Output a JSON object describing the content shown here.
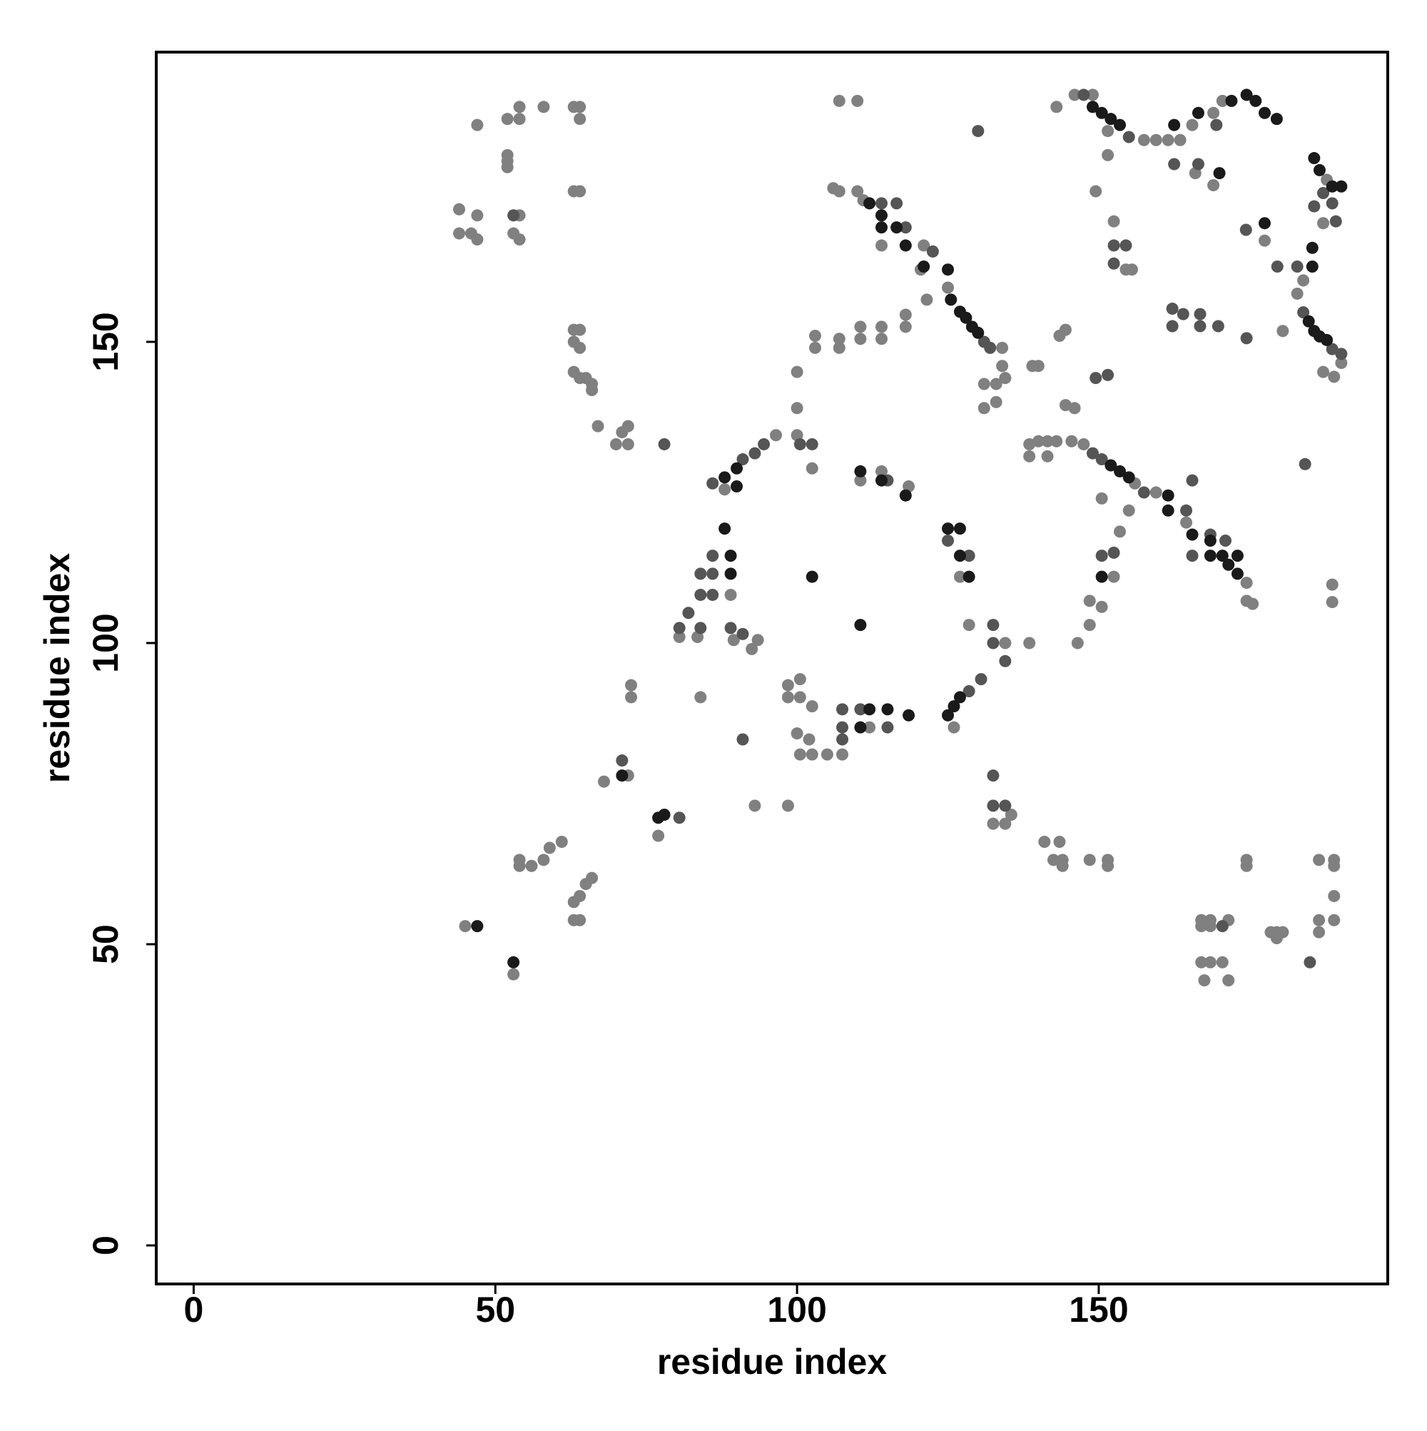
{
  "chart_data": {
    "type": "scatter",
    "x_label": "residue index",
    "y_label": "residue index",
    "xlim": [
      -6.2,
      197.9
    ],
    "ylim": [
      -6.4,
      198.1
    ],
    "xticks": [
      0,
      50,
      100,
      150
    ],
    "yticks": [
      0,
      50,
      100,
      150
    ],
    "grid": false,
    "series": [
      {
        "color": "#808080",
        "x": [
          44,
          44,
          46,
          47,
          47,
          47,
          52,
          54,
          54,
          58,
          63,
          64,
          64,
          52,
          52,
          52,
          54,
          53,
          54,
          63,
          64,
          63,
          64,
          63,
          64,
          63,
          64,
          65,
          66,
          66,
          67,
          71,
          72,
          70,
          72,
          107,
          110,
          106,
          107,
          110,
          111,
          114,
          120.5,
          121,
          125,
          134,
          131,
          133,
          134,
          134.5,
          131,
          133,
          100,
          103,
          103,
          107,
          107,
          110.5,
          110.5,
          114,
          114,
          118,
          118,
          121.5,
          100,
          100,
          96.5,
          88,
          102.5,
          110.5,
          114,
          118.5,
          89,
          80.5,
          83.5,
          89.5,
          92.5,
          93.5,
          98.5,
          100.5,
          98.5,
          100.5,
          102.5,
          100,
          102,
          100.5,
          102.5,
          105,
          107.5,
          112,
          127,
          128.5,
          134.5,
          126,
          138.5,
          72.5,
          72.5,
          84,
          72,
          68,
          77,
          93,
          98.5,
          61,
          59,
          54,
          56,
          58,
          54,
          66,
          65,
          63,
          64,
          63,
          64,
          45,
          53,
          135.5,
          132.5,
          134.5,
          141,
          143.5,
          142.5,
          144,
          148.5,
          151.5,
          144,
          151.5,
          174.5,
          174.5,
          186.5,
          189,
          189,
          189,
          186.5,
          189,
          186.5,
          167,
          168.5,
          171.5,
          167,
          168.5,
          167,
          168.5,
          170.5,
          167.5,
          171.5,
          178.5,
          179.5,
          180.5,
          179.5,
          138.5,
          140,
          141.5,
          143,
          145.5,
          147.5,
          156,
          159.5,
          164.5,
          174.5,
          175.5,
          174.5,
          138.5,
          141.5,
          150.5,
          155,
          153.5,
          152.5,
          148.5,
          148.5,
          150.5,
          146.5,
          139,
          140,
          144.5,
          143.5,
          144.5,
          146,
          149.5,
          152.5,
          154.5,
          155.5,
          143,
          146,
          149,
          151.5,
          157.5,
          159.5,
          161.5,
          163.5,
          151.5,
          165.5,
          170.5,
          169,
          166,
          169,
          187.8,
          187.2,
          183.9,
          182.9,
          190.2,
          187.2,
          189,
          177.5,
          180.5,
          188.7,
          188.7
        ],
        "y": [
          172,
          168,
          168,
          167,
          171,
          186,
          187,
          189,
          187,
          189,
          189,
          189,
          187,
          180,
          181,
          179,
          171,
          168,
          167,
          175,
          175,
          152,
          152,
          150,
          149,
          145,
          144,
          144,
          143,
          142,
          136,
          135,
          136,
          133,
          133,
          190,
          190,
          175.5,
          175,
          175,
          173.5,
          166,
          162,
          166,
          159,
          149,
          143,
          143,
          146,
          144,
          139,
          140,
          145,
          151,
          149,
          149,
          150.5,
          150.5,
          152.5,
          152.5,
          150.5,
          154.5,
          152.5,
          157,
          139,
          134.5,
          134.5,
          125.5,
          129,
          127,
          128.5,
          126,
          108,
          101,
          101,
          100.5,
          99,
          100.5,
          93,
          94,
          91,
          91,
          89.5,
          85,
          84,
          81.5,
          81.5,
          81.5,
          81.5,
          86,
          111,
          103,
          100,
          86,
          100,
          93,
          91,
          91,
          78,
          77,
          68,
          73,
          73,
          67,
          66,
          64,
          63,
          64,
          63,
          61,
          60,
          57,
          58,
          54,
          54,
          53,
          45,
          71.5,
          70,
          70,
          67,
          67,
          64,
          64,
          64,
          64,
          63,
          63,
          64,
          63,
          64,
          64,
          63,
          58,
          54,
          54,
          52,
          54,
          54,
          54,
          53,
          53,
          47,
          47,
          47,
          44,
          44,
          52,
          52,
          52,
          51,
          133,
          133.5,
          133.5,
          133.5,
          133.5,
          133,
          126.5,
          125,
          120,
          110,
          106.5,
          107,
          131,
          131,
          124,
          122,
          118.5,
          111,
          107,
          103,
          106,
          100,
          146,
          146,
          152,
          151,
          139.5,
          139,
          175,
          170,
          162,
          162,
          189,
          191,
          191,
          185,
          183.5,
          183.5,
          183.5,
          183.5,
          181,
          186,
          190,
          188,
          178,
          176,
          176.9,
          169.7,
          160.2,
          158,
          146.5,
          145,
          144.2,
          166.8,
          151.8,
          109.7,
          106.8
        ]
      },
      {
        "color": "#555555",
        "x": [
          114,
          116.5,
          118,
          122.5,
          131,
          132,
          53,
          86,
          94.5,
          93,
          91,
          100.5,
          102.5,
          115,
          86,
          84,
          86,
          84,
          86,
          82,
          80.5,
          84,
          89,
          91,
          107.5,
          107.5,
          107.5,
          110.5,
          115,
          125,
          128.5,
          128.5,
          130.5,
          132.5,
          132.5,
          134.5,
          132.5,
          132.5,
          134.5,
          71,
          80.5,
          91,
          78,
          130,
          147.5,
          155,
          166.5,
          162.5,
          169.5,
          185.7,
          187.2,
          188.7,
          189.3,
          182.9,
          183.9,
          188.7,
          190.2,
          149,
          150.5,
          157.5,
          164.5,
          165.5,
          168.5,
          171,
          165.5,
          150.5,
          152.5,
          152.5,
          154.5,
          152.5,
          174.4,
          179.6,
          162.2,
          166.8,
          164,
          166.8,
          162.2,
          169.8,
          174.5,
          184.2,
          170.5,
          185,
          151.5,
          149.5
        ],
        "y": [
          173,
          173,
          169,
          165,
          150,
          149,
          171,
          126.5,
          133,
          131.5,
          130.5,
          133,
          133,
          127,
          114.5,
          111.5,
          111.5,
          108,
          108,
          105,
          102.5,
          102.5,
          102.5,
          101.5,
          89,
          86,
          84,
          89,
          86,
          117,
          114.5,
          92,
          94,
          100,
          103,
          97,
          78,
          73,
          73,
          80.5,
          71,
          84,
          133,
          185,
          191,
          184,
          179.5,
          179.5,
          186,
          172.5,
          174.7,
          173,
          170,
          162.5,
          154.9,
          148.8,
          148,
          131.5,
          130.5,
          125,
          122,
          127,
          118,
          117,
          114.5,
          114.5,
          115,
          166,
          166,
          163,
          168.6,
          162.5,
          155.5,
          154.6,
          154.6,
          152.6,
          152.6,
          152.6,
          150.6,
          129.7,
          53,
          47,
          144.5,
          144
        ]
      },
      {
        "color": "#1a1a1a",
        "x": [
          112,
          114,
          114,
          116.5,
          118,
          121,
          125,
          125.5,
          127,
          128,
          129,
          130,
          90,
          88,
          90,
          110.5,
          114,
          118,
          88,
          89,
          89,
          102.5,
          110.5,
          125,
          127,
          127,
          128.5,
          110.5,
          112,
          115,
          118.5,
          126,
          125,
          127,
          71,
          77,
          78,
          149,
          150.5,
          152,
          153.5,
          162.5,
          166.5,
          172,
          174.5,
          176,
          177.5,
          179.5,
          170,
          185.7,
          186.6,
          188.7,
          190.2,
          184.8,
          185.7,
          186.6,
          187.8,
          155,
          152,
          153.5,
          161.5,
          161.5,
          165.5,
          168.5,
          168.5,
          170.5,
          173,
          173,
          171.5,
          150.5,
          177.5,
          185.4,
          185.4,
          47,
          53
        ],
        "y": [
          173,
          171,
          169,
          169,
          166,
          162.5,
          162,
          157,
          155,
          154,
          152.5,
          151.5,
          129,
          127.5,
          126,
          128.5,
          127,
          124.5,
          119,
          114.5,
          111.5,
          111,
          103,
          119,
          119,
          114.5,
          111,
          86,
          89,
          89,
          88,
          89.5,
          88,
          91,
          78,
          71,
          71.5,
          189,
          188,
          187,
          186,
          186,
          188,
          190,
          191,
          190,
          188,
          187,
          178,
          180.5,
          178.5,
          175.8,
          175.8,
          153.4,
          151.8,
          150.9,
          150.3,
          127.5,
          129.5,
          128.5,
          124.5,
          122,
          118,
          117,
          114.5,
          114.5,
          114.5,
          111.5,
          113,
          111,
          169.7,
          165.6,
          162.5,
          53,
          47
        ]
      }
    ]
  }
}
